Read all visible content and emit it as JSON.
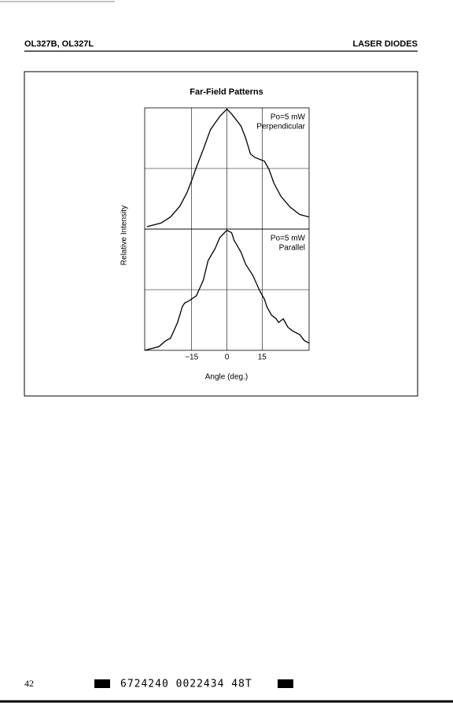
{
  "header": {
    "left": "OL327B, OL327L",
    "right": "LASER DIODES"
  },
  "chart_data": {
    "type": "line",
    "title": "Far-Field Patterns",
    "x_label": "Angle (deg.)",
    "y_label": "Relative Intensity",
    "xlim": [
      -35,
      35
    ],
    "xticks": [
      {
        "value": -15,
        "label": "−15"
      },
      0,
      15
    ],
    "ylim": [
      0,
      1
    ],
    "ygrid": [
      0.5
    ],
    "color": "#000000",
    "series": [
      {
        "name": "Perpendicular",
        "annotation": [
          "Po=5 mW",
          "Perpendicular"
        ],
        "x": [
          -34,
          -28,
          -24,
          -20,
          -17,
          -15,
          -13,
          -10,
          -7,
          -3,
          0,
          2,
          6,
          8,
          10,
          12,
          16,
          18,
          20,
          23,
          27,
          31,
          35
        ],
        "values": [
          0.02,
          0.05,
          0.1,
          0.19,
          0.3,
          0.4,
          0.51,
          0.66,
          0.82,
          0.93,
          0.99,
          0.95,
          0.85,
          0.75,
          0.62,
          0.59,
          0.56,
          0.49,
          0.38,
          0.27,
          0.18,
          0.12,
          0.1
        ]
      },
      {
        "name": "Parallel",
        "annotation": [
          "Po=5 mW",
          "Parallel"
        ],
        "x": [
          -35,
          -29,
          -26,
          -24,
          -21,
          -19,
          -18,
          -16,
          -13,
          -10,
          -8,
          -5,
          -3,
          0,
          2,
          3,
          6,
          8,
          11,
          14,
          16,
          17,
          19,
          21,
          22,
          24,
          26,
          28,
          31,
          33,
          35
        ],
        "values": [
          0,
          0.03,
          0.08,
          0.1,
          0.23,
          0.36,
          0.39,
          0.41,
          0.45,
          0.58,
          0.74,
          0.84,
          0.93,
          0.99,
          0.97,
          0.91,
          0.81,
          0.71,
          0.62,
          0.49,
          0.42,
          0.36,
          0.29,
          0.26,
          0.23,
          0.26,
          0.19,
          0.16,
          0.13,
          0.08,
          0.06
        ]
      }
    ]
  },
  "footer": {
    "page": "42",
    "code": "6724240 0022434 48T"
  }
}
